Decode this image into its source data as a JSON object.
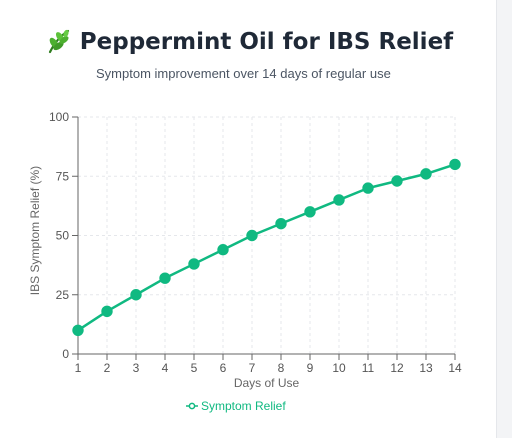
{
  "header": {
    "icon": "leaf-icon",
    "title": "Peppermint Oil for IBS Relief",
    "subtitle": "Symptom improvement over 14 days of regular use"
  },
  "colors": {
    "accent": "#10b981",
    "grid": "#e5e7eb",
    "axis": "#666666"
  },
  "chart_data": {
    "type": "line",
    "title": "Peppermint Oil for IBS Relief",
    "subtitle": "Symptom improvement over 14 days of regular use",
    "xlabel": "Days of Use",
    "ylabel": "IBS Symptom Relief (%)",
    "x": [
      1,
      2,
      3,
      4,
      5,
      6,
      7,
      8,
      9,
      10,
      11,
      12,
      13,
      14
    ],
    "xlim": [
      1,
      14
    ],
    "ylim": [
      0,
      100
    ],
    "yticks": [
      0,
      25,
      50,
      75,
      100
    ],
    "grid": true,
    "legend_position": "bottom",
    "series": [
      {
        "name": "Symptom Relief",
        "values": [
          10,
          18,
          25,
          32,
          38,
          44,
          50,
          55,
          60,
          65,
          70,
          73,
          76,
          80
        ]
      }
    ]
  }
}
